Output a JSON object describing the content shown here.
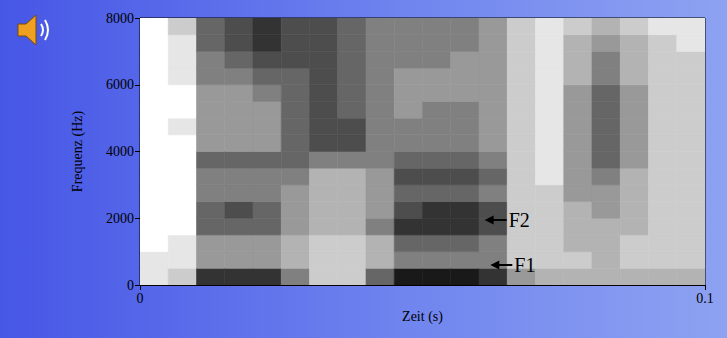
{
  "chart_data": {
    "type": "spectrogram",
    "xlabel": "Zeit (s)",
    "ylabel": "Frequenz (Hz)",
    "xlim": [
      0,
      0.1
    ],
    "xticks": [
      0,
      0.1
    ],
    "ylim": [
      0,
      8000
    ],
    "yticks": [
      0,
      2000,
      4000,
      6000,
      8000
    ],
    "grid": false,
    "time_bins": [
      0,
      0.005,
      0.01,
      0.015,
      0.02,
      0.025,
      0.03,
      0.035,
      0.04,
      0.045,
      0.05,
      0.055,
      0.06,
      0.065,
      0.07,
      0.075,
      0.08,
      0.085,
      0.09,
      0.095,
      0.1
    ],
    "frequency_bins": [
      0,
      500,
      1000,
      1500,
      2000,
      2500,
      3000,
      3500,
      4000,
      4500,
      5000,
      5500,
      6000,
      6500,
      7000,
      7500,
      8000
    ],
    "zlim": [
      0,
      10
    ],
    "cells": [
      [
        1,
        1,
        0,
        0,
        0,
        0,
        0,
        0,
        0,
        0,
        0,
        0,
        0,
        0,
        0,
        0
      ],
      [
        2,
        1,
        1,
        0,
        0,
        0,
        0,
        0,
        0,
        1,
        0,
        0,
        1,
        1,
        1,
        2
      ],
      [
        8,
        4,
        4,
        6,
        6,
        5,
        5,
        6,
        4,
        4,
        4,
        4,
        5,
        5,
        6,
        6
      ],
      [
        8,
        4,
        4,
        6,
        7,
        5,
        5,
        6,
        4,
        4,
        4,
        4,
        5,
        6,
        7,
        7
      ],
      [
        8,
        4,
        4,
        6,
        6,
        5,
        5,
        6,
        4,
        4,
        4,
        5,
        6,
        7,
        8,
        8
      ],
      [
        5,
        3,
        3,
        4,
        4,
        4,
        5,
        6,
        6,
        6,
        6,
        6,
        6,
        7,
        7,
        7
      ],
      [
        2,
        2,
        2,
        3,
        3,
        3,
        3,
        5,
        7,
        7,
        7,
        7,
        7,
        7,
        7,
        7
      ],
      [
        2,
        2,
        2,
        3,
        3,
        3,
        3,
        5,
        7,
        7,
        6,
        6,
        6,
        6,
        6,
        6
      ],
      [
        6,
        3,
        3,
        5,
        4,
        4,
        4,
        5,
        5,
        5,
        5,
        5,
        5,
        5,
        5,
        5
      ],
      [
        9,
        5,
        6,
        8,
        7,
        6,
        7,
        6,
        5,
        5,
        4,
        4,
        4,
        5,
        5,
        5
      ],
      [
        9,
        5,
        6,
        8,
        8,
        6,
        7,
        6,
        5,
        5,
        5,
        4,
        4,
        5,
        5,
        5
      ],
      [
        9,
        5,
        6,
        8,
        8,
        6,
        7,
        6,
        5,
        5,
        5,
        4,
        4,
        4,
        5,
        5
      ],
      [
        8,
        5,
        5,
        7,
        7,
        5,
        6,
        5,
        4,
        4,
        4,
        4,
        4,
        4,
        4,
        4
      ],
      [
        4,
        2,
        2,
        2,
        2,
        2,
        2,
        2,
        2,
        2,
        2,
        2,
        2,
        2,
        2,
        2
      ],
      [
        3,
        2,
        2,
        2,
        2,
        2,
        1,
        1,
        1,
        1,
        1,
        1,
        1,
        1,
        1,
        1
      ],
      [
        3,
        2,
        3,
        3,
        3,
        4,
        4,
        4,
        4,
        4,
        4,
        4,
        3,
        3,
        3,
        2
      ],
      [
        3,
        3,
        3,
        3,
        4,
        4,
        5,
        6,
        6,
        6,
        6,
        6,
        5,
        5,
        4,
        3
      ],
      [
        3,
        2,
        2,
        3,
        3,
        3,
        3,
        4,
        4,
        4,
        4,
        4,
        3,
        3,
        3,
        2
      ],
      [
        3,
        2,
        2,
        2,
        2,
        2,
        2,
        2,
        2,
        2,
        2,
        2,
        2,
        2,
        2,
        1
      ],
      [
        3,
        2,
        2,
        2,
        2,
        2,
        2,
        2,
        2,
        2,
        2,
        2,
        2,
        2,
        1,
        1
      ]
    ],
    "annotations": [
      {
        "text": "F2",
        "x": 0.061,
        "y": 1950
      },
      {
        "text": "F1",
        "x": 0.062,
        "y": 600
      }
    ]
  }
}
